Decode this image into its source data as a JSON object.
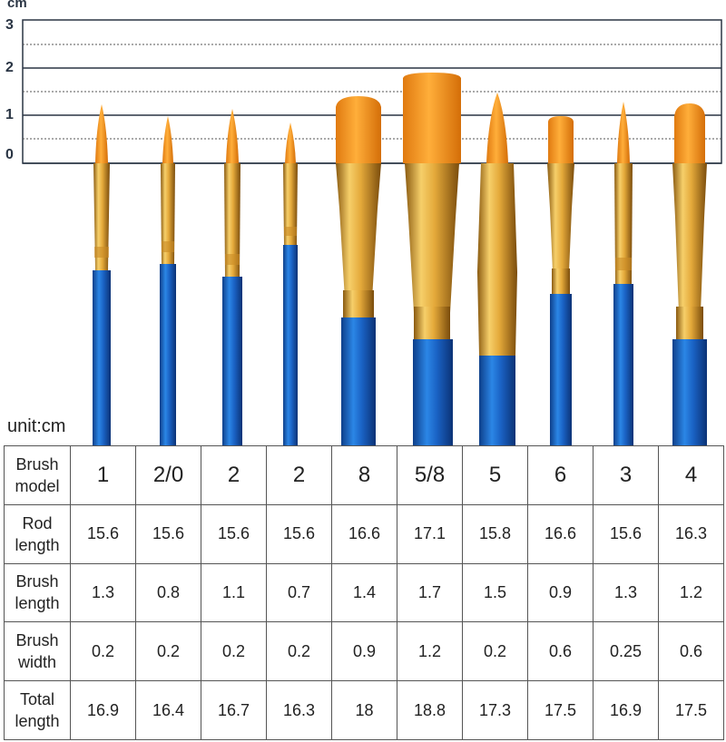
{
  "ruler": {
    "unit": "cm",
    "labels": [
      "3",
      "2",
      "1",
      "0"
    ]
  },
  "unit_note": "unit:cm",
  "table": {
    "rows": [
      {
        "label": "Brush model",
        "cells": [
          "1",
          "2/0",
          "2",
          "2",
          "8",
          "5/8",
          "5",
          "6",
          "3",
          "4"
        ]
      },
      {
        "label": "Rod length",
        "cells": [
          "15.6",
          "15.6",
          "15.6",
          "15.6",
          "16.6",
          "17.1",
          "15.8",
          "16.6",
          "15.6",
          "16.3"
        ]
      },
      {
        "label": "Brush length",
        "cells": [
          "1.3",
          "0.8",
          "1.1",
          "0.7",
          "1.4",
          "1.7",
          "1.5",
          "0.9",
          "1.3",
          "1.2"
        ]
      },
      {
        "label": "Brush width",
        "cells": [
          "0.2",
          "0.2",
          "0.2",
          "0.2",
          "0.9",
          "1.2",
          "0.2",
          "0.6",
          "0.25",
          "0.6"
        ]
      },
      {
        "label": "Total length",
        "cells": [
          "16.9",
          "16.4",
          "16.7",
          "16.3",
          "18",
          "18.8",
          "17.3",
          "17.5",
          "16.9",
          "17.5"
        ]
      }
    ]
  },
  "colors": {
    "bristle": "#f29a1c",
    "ferrule": "#e0a536",
    "handle": "#1f6fd0",
    "grid": "#2a3544"
  }
}
